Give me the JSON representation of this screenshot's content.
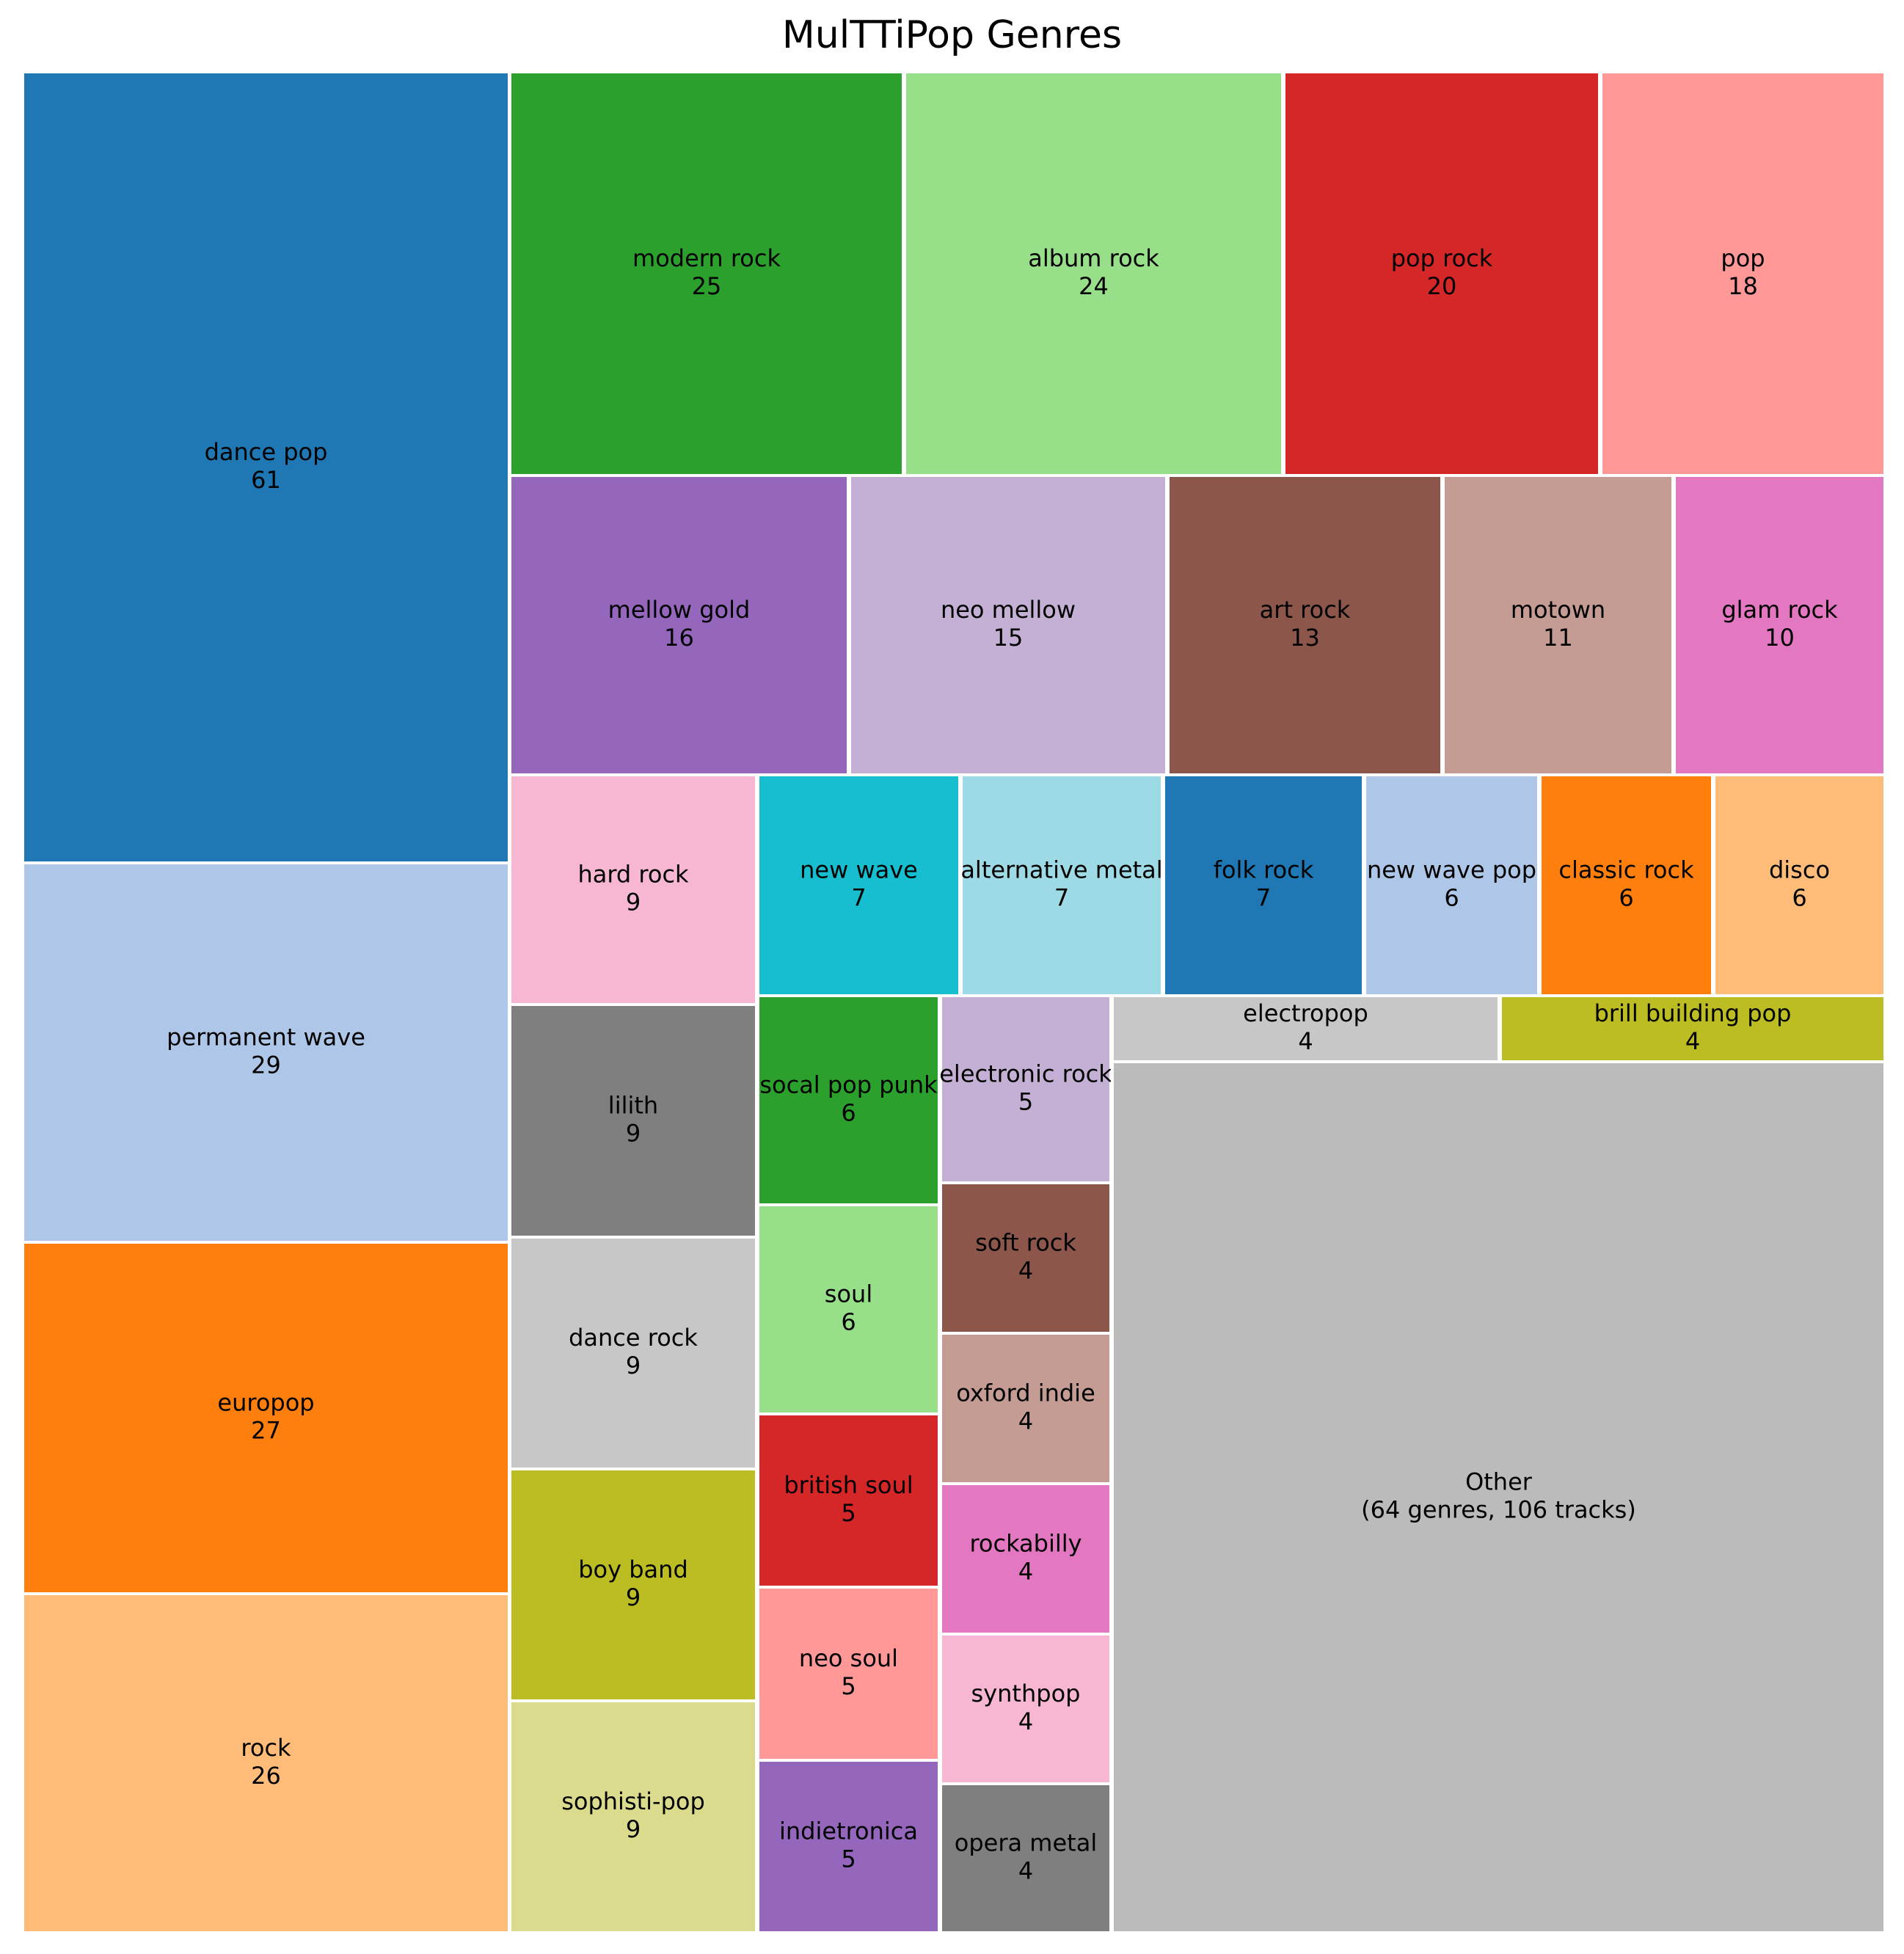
{
  "chart_data": {
    "type": "treemap",
    "title": "MulTTiPop Genres",
    "cells": [
      {
        "name": "dance pop",
        "value": "61",
        "color": "#1f77b4"
      },
      {
        "name": "permanent wave",
        "value": "29",
        "color": "#aec7e8"
      },
      {
        "name": "europop",
        "value": "27",
        "color": "#ff7f0e"
      },
      {
        "name": "rock",
        "value": "26",
        "color": "#ffbb78"
      },
      {
        "name": "modern rock",
        "value": "25",
        "color": "#2ca02c"
      },
      {
        "name": "album rock",
        "value": "24",
        "color": "#98df8a"
      },
      {
        "name": "pop rock",
        "value": "20",
        "color": "#d62728"
      },
      {
        "name": "pop",
        "value": "18",
        "color": "#ff9896"
      },
      {
        "name": "mellow gold",
        "value": "16",
        "color": "#9467bd"
      },
      {
        "name": "neo mellow",
        "value": "15",
        "color": "#c5b0d5"
      },
      {
        "name": "art rock",
        "value": "13",
        "color": "#8c564b"
      },
      {
        "name": "motown",
        "value": "11",
        "color": "#c49c94"
      },
      {
        "name": "glam rock",
        "value": "10",
        "color": "#e377c2"
      },
      {
        "name": "hard rock",
        "value": "9",
        "color": "#f7b6d2"
      },
      {
        "name": "lilith",
        "value": "9",
        "color": "#7f7f7f"
      },
      {
        "name": "dance rock",
        "value": "9",
        "color": "#c7c7c7"
      },
      {
        "name": "boy band",
        "value": "9",
        "color": "#bcbd22"
      },
      {
        "name": "sophisti-pop",
        "value": "9",
        "color": "#dbdb8d"
      },
      {
        "name": "new wave",
        "value": "7",
        "color": "#17becf"
      },
      {
        "name": "alternative metal",
        "value": "7",
        "color": "#9edae5"
      },
      {
        "name": "folk rock",
        "value": "7",
        "color": "#1f77b4"
      },
      {
        "name": "new wave pop",
        "value": "6",
        "color": "#aec7e8"
      },
      {
        "name": "classic rock",
        "value": "6",
        "color": "#ff7f0e"
      },
      {
        "name": "disco",
        "value": "6",
        "color": "#ffbb78"
      },
      {
        "name": "socal pop punk",
        "value": "6",
        "color": "#2ca02c"
      },
      {
        "name": "soul",
        "value": "6",
        "color": "#98df8a"
      },
      {
        "name": "british soul",
        "value": "5",
        "color": "#d62728"
      },
      {
        "name": "neo soul",
        "value": "5",
        "color": "#ff9896"
      },
      {
        "name": "indietronica",
        "value": "5",
        "color": "#9467bd"
      },
      {
        "name": "electronic rock",
        "value": "5",
        "color": "#c5b0d5"
      },
      {
        "name": "soft rock",
        "value": "4",
        "color": "#8c564b"
      },
      {
        "name": "oxford indie",
        "value": "4",
        "color": "#c49c94"
      },
      {
        "name": "rockabilly",
        "value": "4",
        "color": "#e377c2"
      },
      {
        "name": "synthpop",
        "value": "4",
        "color": "#f7b6d2"
      },
      {
        "name": "opera metal",
        "value": "4",
        "color": "#7f7f7f"
      },
      {
        "name": "electropop",
        "value": "4",
        "color": "#c7c7c7"
      },
      {
        "name": "brill building pop",
        "value": "4",
        "color": "#bcbd22"
      },
      {
        "name": "Other",
        "value": "(64 genres, 106 tracks)",
        "color": "#bbbbbb"
      }
    ]
  }
}
